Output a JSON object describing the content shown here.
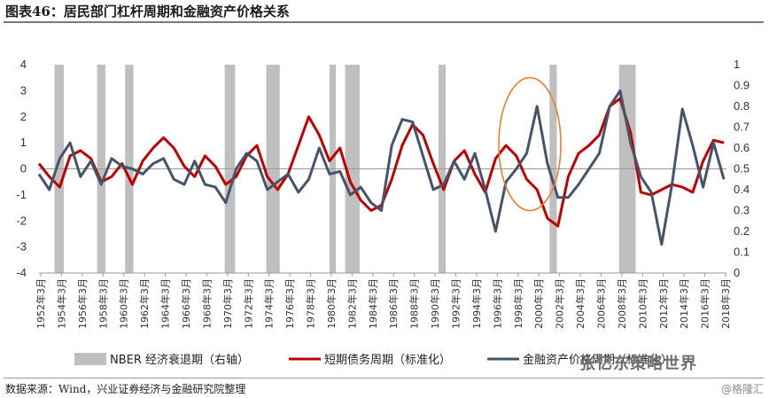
{
  "title": "图表46：居民部门杠杆周期和金融资产价格关系",
  "source": "数据来源：Wind，兴业证券经济与金融研究院整理",
  "credit": "@格隆汇",
  "watermark": "张忆东策略世界",
  "colors": {
    "recession": "#bfbfbf",
    "debt": "#c00000",
    "asset": "#44546a",
    "highlight": "#ed7d31"
  },
  "chart_data": {
    "type": "line",
    "left_axis": {
      "min": -4,
      "max": 4,
      "ticks": [
        4,
        3,
        2,
        1,
        0,
        -1,
        -2,
        -3,
        -4
      ]
    },
    "right_axis": {
      "min": 0,
      "max": 1,
      "ticks": [
        1,
        0.9,
        0.8,
        0.7,
        0.6,
        0.5,
        0.4,
        0.3,
        0.2,
        0.1,
        0
      ]
    },
    "x_range": [
      1952.0,
      2018.25
    ],
    "x_tick_labels": [
      "1952年3月",
      "1954年3月",
      "1956年3月",
      "1958年3月",
      "1960年3月",
      "1962年3月",
      "1964年3月",
      "1966年3月",
      "1968年3月",
      "1970年3月",
      "1972年3月",
      "1974年3月",
      "1976年3月",
      "1978年3月",
      "1980年3月",
      "1982年3月",
      "1984年3月",
      "1986年3月",
      "1988年3月",
      "1990年3月",
      "1992年3月",
      "1994年3月",
      "1996年3月",
      "1998年3月",
      "2000年3月",
      "2002年3月",
      "2004年3月",
      "2006年3月",
      "2008年3月",
      "2010年3月",
      "2012年3月",
      "2014年3月",
      "2016年3月",
      "2018年3月"
    ],
    "grid": false,
    "legend_position": "bottom",
    "series": [
      {
        "name": "NBER 经济衰退期（右轴）",
        "kind": "recession",
        "periods": [
          [
            1953.5,
            1954.4
          ],
          [
            1957.6,
            1958.4
          ],
          [
            1960.3,
            1961.1
          ],
          [
            1969.9,
            1970.9
          ],
          [
            1973.9,
            1975.2
          ],
          [
            1980.0,
            1980.6
          ],
          [
            1981.5,
            1982.9
          ],
          [
            1990.5,
            1991.2
          ],
          [
            2001.2,
            2001.9
          ],
          [
            2007.9,
            2009.5
          ]
        ]
      },
      {
        "name": "短期债务周期（标准化）",
        "kind": "line",
        "axis": "left",
        "x": [
          1952,
          1953,
          1954,
          1955,
          1956,
          1957,
          1958,
          1959,
          1960,
          1961,
          1962,
          1963,
          1964,
          1965,
          1966,
          1967,
          1968,
          1969,
          1970,
          1971,
          1972,
          1973,
          1974,
          1975,
          1976,
          1977,
          1978,
          1979,
          1980,
          1981,
          1982,
          1983,
          1984,
          1985,
          1986,
          1987,
          1988,
          1989,
          1990,
          1991,
          1992,
          1993,
          1994,
          1995,
          1996,
          1997,
          1998,
          1999,
          2000,
          2001,
          2002,
          2003,
          2004,
          2005,
          2006,
          2007,
          2008,
          2009,
          2010,
          2011,
          2012,
          2013,
          2014,
          2015,
          2016,
          2017,
          2018
        ],
        "y": [
          0.2,
          -0.3,
          -0.7,
          0.5,
          0.7,
          0.4,
          -0.5,
          -0.3,
          0.2,
          -0.6,
          0.3,
          0.8,
          1.2,
          0.8,
          0.1,
          -0.3,
          0.5,
          0.1,
          -0.6,
          -0.3,
          0.5,
          0.9,
          -0.3,
          -0.8,
          -0.2,
          0.9,
          2.0,
          1.3,
          0.3,
          0.8,
          -0.5,
          -1.2,
          -1.6,
          -1.4,
          -0.4,
          0.9,
          1.7,
          1.3,
          0.2,
          -0.8,
          0.3,
          0.7,
          -0.2,
          -0.9,
          0.4,
          0.9,
          0.5,
          -0.4,
          -0.8,
          -1.9,
          -2.2,
          -0.3,
          0.6,
          0.9,
          1.3,
          2.4,
          2.7,
          1.4,
          -0.9,
          -1.0,
          -0.8,
          -0.6,
          -0.7,
          -0.9,
          0.3,
          1.1,
          1.0
        ]
      },
      {
        "name": "金融资产价格周期（标准化）",
        "kind": "line",
        "axis": "left",
        "x": [
          1952,
          1953,
          1954,
          1955,
          1956,
          1957,
          1958,
          1959,
          1960,
          1961,
          1962,
          1963,
          1964,
          1965,
          1966,
          1967,
          1968,
          1969,
          1970,
          1971,
          1972,
          1973,
          1974,
          1975,
          1976,
          1977,
          1978,
          1979,
          1980,
          1981,
          1982,
          1983,
          1984,
          1985,
          1986,
          1987,
          1988,
          1989,
          1990,
          1991,
          1992,
          1993,
          1994,
          1995,
          1996,
          1997,
          1998,
          1999,
          2000,
          2001,
          2002,
          2003,
          2004,
          2005,
          2006,
          2007,
          2008,
          2009,
          2010,
          2011,
          2012,
          2013,
          2014,
          2015,
          2016,
          2017,
          2018
        ],
        "y": [
          -0.2,
          -0.8,
          0.4,
          1.0,
          -0.3,
          0.3,
          -0.6,
          0.4,
          0.1,
          0.0,
          -0.2,
          0.2,
          0.4,
          -0.4,
          -0.6,
          0.3,
          -0.6,
          -0.7,
          -1.3,
          0.0,
          0.6,
          0.3,
          -0.8,
          -0.5,
          -0.2,
          -0.9,
          -0.4,
          0.8,
          -0.2,
          -0.1,
          -1.0,
          -0.7,
          -1.3,
          -1.6,
          0.9,
          1.9,
          1.8,
          0.5,
          -0.8,
          -0.6,
          0.3,
          -0.4,
          0.6,
          -0.8,
          -2.4,
          -0.5,
          0.0,
          0.6,
          2.4,
          0.2,
          -1.1,
          -1.1,
          -0.6,
          0.0,
          0.6,
          2.4,
          3.0,
          1.0,
          -0.3,
          -0.9,
          -2.9,
          -0.6,
          2.3,
          0.9,
          -0.7,
          1.0,
          -0.4
        ]
      }
    ]
  }
}
